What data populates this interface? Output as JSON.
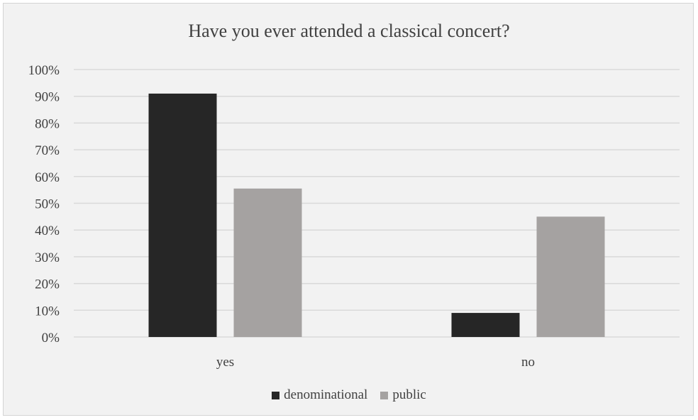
{
  "chart_data": {
    "type": "bar",
    "title": "Have you ever attended a classical concert?",
    "xlabel": "",
    "ylabel": "",
    "categories": [
      "yes",
      "no"
    ],
    "series": [
      {
        "name": "denominational",
        "values": [
          91,
          9
        ],
        "color": "#262626"
      },
      {
        "name": "public",
        "values": [
          55.5,
          45
        ],
        "color": "#a5a2a1"
      }
    ],
    "ylim": [
      0,
      100
    ],
    "yticks": [
      0,
      10,
      20,
      30,
      40,
      50,
      60,
      70,
      80,
      90,
      100
    ],
    "ytick_labels": [
      "0%",
      "10%",
      "20%",
      "30%",
      "40%",
      "50%",
      "60%",
      "70%",
      "80%",
      "90%",
      "100%"
    ],
    "grid": true,
    "legend_position": "bottom"
  },
  "colors": {
    "background": "#f2f2f2",
    "gridline": "#d9d9d9",
    "text": "#404040"
  }
}
